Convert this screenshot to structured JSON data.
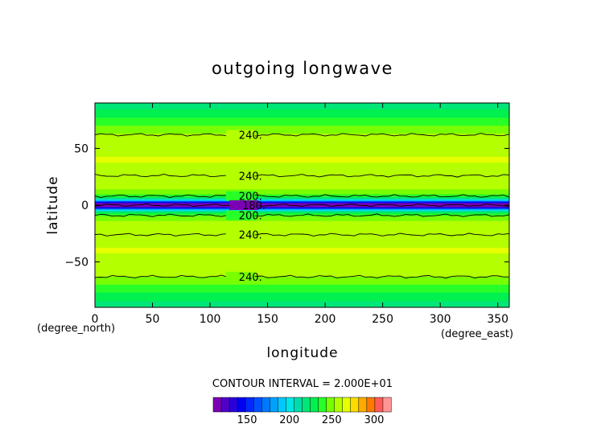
{
  "chart_data": {
    "type": "heatmap",
    "title": "outgoing longwave",
    "xlabel": "longitude",
    "ylabel": "latitude",
    "x_unit": "(degree_east)",
    "y_unit": "(degree_north)",
    "xlim": [
      0,
      360
    ],
    "ylim": [
      -90,
      90
    ],
    "x_ticks": [
      0,
      50,
      100,
      150,
      200,
      250,
      300,
      350
    ],
    "y_ticks": [
      -50,
      0,
      50
    ],
    "y_tick_labels": [
      "−50",
      "0",
      "50"
    ],
    "contour_interval_text": "CONTOUR INTERVAL = 2.000E+01",
    "contour_levels": [
      {
        "value": 240,
        "latitude": 62,
        "label": "240.",
        "label_lon": 125
      },
      {
        "value": 240,
        "latitude": 26,
        "label": "240.",
        "label_lon": 125
      },
      {
        "value": 200,
        "latitude": 8,
        "label": "200.",
        "label_lon": 125
      },
      {
        "value": 180,
        "latitude": 0,
        "label": "180.",
        "label_lon": 128
      },
      {
        "value": 200,
        "latitude": -9,
        "label": "200.",
        "label_lon": 125
      },
      {
        "value": 240,
        "latitude": -26,
        "label": "240.",
        "label_lon": 125
      },
      {
        "value": 240,
        "latitude": -63,
        "label": "240.",
        "label_lon": 125
      }
    ],
    "colorbar": {
      "ticks": [
        150,
        200,
        250,
        300
      ],
      "range": [
        110,
        320
      ],
      "colors": [
        "#7b00b4",
        "#5000c8",
        "#2800dc",
        "#0000f0",
        "#0028ff",
        "#0050ff",
        "#0078ff",
        "#00a0ff",
        "#00c8ff",
        "#00e6e6",
        "#00dcaa",
        "#00e678",
        "#00f050",
        "#28ff28",
        "#78ff00",
        "#b4ff00",
        "#e6ff00",
        "#ffdc00",
        "#ffaa00",
        "#ff7800",
        "#ff5a5a",
        "#ff9696"
      ]
    }
  }
}
